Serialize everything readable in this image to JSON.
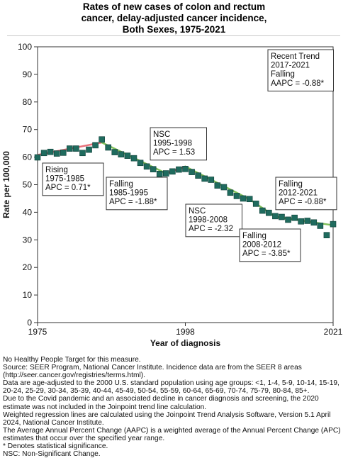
{
  "title_lines": [
    "Rates of new cases of colon and rectum",
    "cancer, delay-adjusted cancer incidence,",
    "Both Sexes,  1975-2021"
  ],
  "chart_data": {
    "type": "line",
    "xlabel": "Year of diagnosis",
    "ylabel": "Rate per 100,000",
    "xlim": [
      1975,
      2021
    ],
    "ylim": [
      0,
      100
    ],
    "x_ticks": [
      "1975",
      "1998",
      "2021"
    ],
    "y_ticks": [
      "0",
      "10",
      "20",
      "30",
      "40",
      "50",
      "60",
      "70",
      "80",
      "90",
      "100"
    ],
    "grid": false,
    "observed": {
      "x": [
        1975,
        1976,
        1977,
        1978,
        1979,
        1980,
        1981,
        1982,
        1983,
        1984,
        1985,
        1986,
        1987,
        1988,
        1989,
        1990,
        1991,
        1992,
        1993,
        1994,
        1995,
        1996,
        1997,
        1998,
        1999,
        2000,
        2001,
        2002,
        2003,
        2004,
        2005,
        2006,
        2007,
        2008,
        2009,
        2010,
        2011,
        2012,
        2013,
        2014,
        2015,
        2016,
        2017,
        2018,
        2019,
        2020,
        2021
      ],
      "y": [
        59.9,
        61.5,
        61.9,
        61.3,
        61.6,
        63.1,
        63.1,
        61.5,
        62.7,
        64.3,
        66.4,
        63.5,
        61.8,
        61.0,
        60.5,
        59.6,
        57.9,
        56.6,
        55.6,
        53.9,
        54.1,
        54.8,
        55.5,
        55.7,
        54.6,
        53.3,
        52.2,
        51.8,
        49.7,
        49.1,
        47.1,
        45.9,
        45.0,
        44.8,
        43.1,
        40.6,
        39.8,
        38.6,
        38.3,
        37.3,
        38.0,
        36.7,
        36.9,
        36.3,
        35.1,
        31.7,
        35.7
      ]
    },
    "trend_segments": [
      {
        "x": [
          1975,
          1985
        ],
        "y": [
          60.8,
          65.3
        ],
        "color": "#e8707a"
      },
      {
        "x": [
          1985,
          1995
        ],
        "y": [
          65.3,
          54.1
        ],
        "color": "#7fbf5a"
      },
      {
        "x": [
          1995,
          1998
        ],
        "y": [
          54.1,
          56.6
        ],
        "color": "#e8707a"
      },
      {
        "x": [
          1998,
          2008
        ],
        "y": [
          56.6,
          44.7
        ],
        "color": "#7fbf5a"
      },
      {
        "x": [
          2008,
          2012
        ],
        "y": [
          44.7,
          38.4
        ],
        "color": "#7fbf5a"
      },
      {
        "x": [
          2012,
          2021
        ],
        "y": [
          38.4,
          35.3
        ],
        "color": "#7fbf5a"
      }
    ],
    "marker_color": "#1f6b5e",
    "annotations": [
      {
        "lines": [
          "Recent Trend",
          "2017-2021",
          "Falling",
          "AAPC = -0.88*"
        ]
      },
      {
        "lines": [
          "NSC",
          "1995-1998",
          "APC =  1.53"
        ]
      },
      {
        "lines": [
          "Rising",
          "1975-1985",
          "APC =  0.71*"
        ]
      },
      {
        "lines": [
          "Falling",
          "1985-1995",
          "APC = -1.88*"
        ]
      },
      {
        "lines": [
          "NSC",
          "1998-2008",
          "APC = -2.32"
        ]
      },
      {
        "lines": [
          "Falling",
          "2012-2021",
          "APC = -0.88*"
        ]
      },
      {
        "lines": [
          "Falling",
          "2008-2012",
          "APC = -3.85*"
        ]
      }
    ]
  },
  "notes": [
    "No Healthy People Target for this measure.",
    "Source: SEER Program, National Cancer Institute. Incidence data are from the SEER 8 areas (http://seer.cancer.gov/registries/terms.html).",
    "Data are age-adjusted to the 2000 U.S. standard population using age groups: <1, 1-4, 5-9, 10-14, 15-19, 20-24, 25-29, 30-34, 35-39, 40-44, 45-49, 50-54, 55-59, 60-64, 65-69, 70-74, 75-79, 80-84, 85+.",
    "Due to the Covid pandemic and an associated decline in cancer diagnosis and screening, the 2020 estimate was not included in the Joinpoint trend line calculation.",
    "Weighted regression lines are calculated using the Joinpoint Trend Analysis Software, Version 5.1 April 2024, National Cancer Institute.",
    "The Average Annual Percent Change (AAPC) is a weighted average of the Annual Percent Change (APC) estimates that occur over the specified year range.",
    "* Denotes statistical significance.",
    "NSC: Non-Significant Change."
  ]
}
